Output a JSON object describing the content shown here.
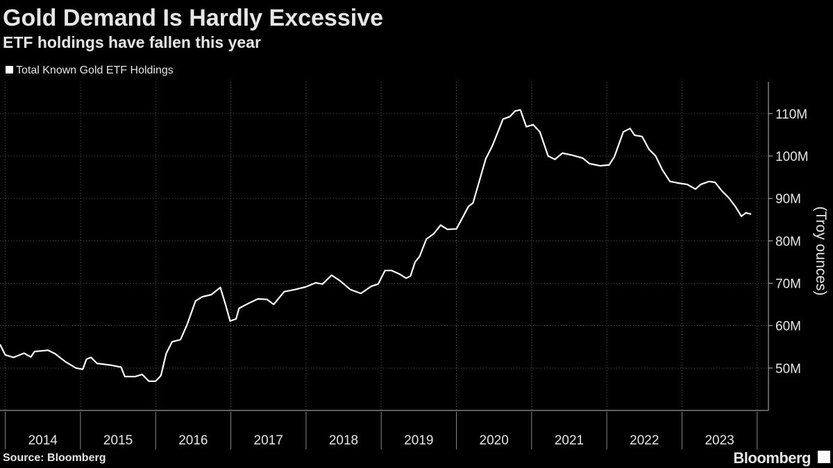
{
  "chart_data": {
    "type": "line",
    "title": "Gold Demand Is Hardly Excessive",
    "subtitle": "ETF holdings have fallen this year",
    "y_axis_label": "(Troy ounces)",
    "source": "Source: Bloomberg",
    "brand": "Bloomberg",
    "grid": true,
    "legend": "top-left",
    "x": [
      2013.93,
      2014.0,
      2014.11,
      2014.25,
      2014.34,
      2014.39,
      2014.57,
      2014.66,
      2014.8,
      2014.94,
      2015.03,
      2015.08,
      2015.14,
      2015.22,
      2015.4,
      2015.54,
      2015.59,
      2015.73,
      2015.82,
      2015.91,
      2016.0,
      2016.07,
      2016.14,
      2016.22,
      2016.33,
      2016.42,
      2016.53,
      2016.62,
      2016.74,
      2016.86,
      2016.93,
      2016.99,
      2017.07,
      2017.11,
      2017.25,
      2017.36,
      2017.48,
      2017.57,
      2017.71,
      2017.85,
      2017.99,
      2018.13,
      2018.22,
      2018.34,
      2018.45,
      2018.59,
      2018.73,
      2018.87,
      2018.96,
      2019.05,
      2019.14,
      2019.24,
      2019.33,
      2019.39,
      2019.45,
      2019.51,
      2019.6,
      2019.7,
      2019.79,
      2019.88,
      2020.0,
      2020.07,
      2020.16,
      2020.22,
      2020.3,
      2020.39,
      2020.48,
      2020.56,
      2020.62,
      2020.71,
      2020.78,
      2020.85,
      2020.93,
      2021.02,
      2021.11,
      2021.22,
      2021.31,
      2021.41,
      2021.54,
      2021.68,
      2021.77,
      2021.91,
      2022.03,
      2022.1,
      2022.22,
      2022.31,
      2022.37,
      2022.47,
      2022.56,
      2022.65,
      2022.74,
      2022.84,
      2022.96,
      2023.07,
      2023.18,
      2023.25,
      2023.36,
      2023.44,
      2023.53,
      2023.62,
      2023.71,
      2023.79,
      2023.85,
      2023.92
    ],
    "series": [
      {
        "name": "Total Known Gold ETF Holdings",
        "color": "#ffffff",
        "values": [
          55.6,
          53.1,
          52.5,
          53.5,
          52.6,
          53.9,
          54.2,
          53.4,
          51.5,
          50.0,
          49.7,
          52.1,
          52.5,
          51.1,
          50.7,
          50.2,
          48.0,
          48.0,
          48.5,
          46.9,
          46.9,
          48.2,
          53.4,
          56.2,
          56.7,
          60.3,
          65.8,
          66.8,
          67.3,
          69.0,
          64.9,
          61.1,
          61.6,
          64.1,
          65.4,
          66.3,
          66.2,
          65.0,
          68.0,
          68.5,
          69.1,
          70.1,
          69.8,
          71.9,
          70.6,
          68.5,
          67.6,
          69.3,
          69.8,
          73.0,
          73.0,
          72.2,
          71.2,
          71.7,
          75.0,
          76.3,
          80.4,
          81.7,
          83.7,
          82.7,
          82.8,
          85.1,
          88.1,
          88.9,
          93.8,
          99.3,
          102.5,
          106.0,
          108.7,
          109.3,
          110.6,
          110.9,
          106.9,
          107.4,
          105.7,
          100.0,
          99.2,
          100.7,
          100.2,
          99.5,
          98.2,
          97.7,
          97.9,
          99.8,
          105.7,
          106.5,
          104.9,
          104.6,
          101.6,
          100.0,
          96.7,
          94.0,
          93.6,
          93.3,
          92.2,
          93.3,
          94.0,
          93.8,
          91.8,
          90.2,
          88.1,
          85.8,
          86.6,
          86.3
        ]
      }
    ],
    "xlim": [
      2013.93,
      2024.15
    ],
    "xticks": [
      2014,
      2015,
      2016,
      2017,
      2018,
      2019,
      2020,
      2021,
      2022,
      2023
    ],
    "ylim": [
      40.0,
      117.5
    ],
    "yticks": [
      {
        "value": 50,
        "label": "50M"
      },
      {
        "value": 60,
        "label": "60M"
      },
      {
        "value": 70,
        "label": "70M"
      },
      {
        "value": 80,
        "label": "80M"
      },
      {
        "value": 90,
        "label": "90M"
      },
      {
        "value": 100,
        "label": "100M"
      },
      {
        "value": 110,
        "label": "110M"
      }
    ]
  }
}
